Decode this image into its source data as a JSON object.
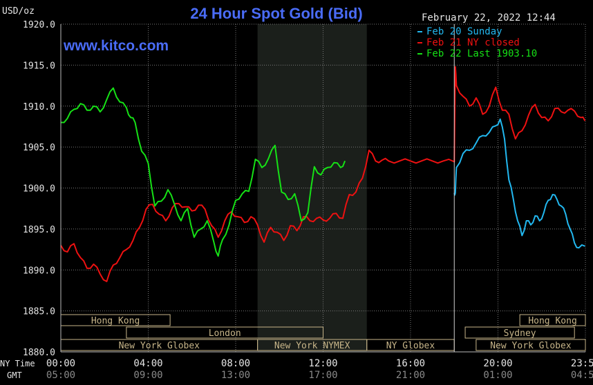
{
  "chart_data": {
    "type": "line",
    "title": "24 Hour Spot Gold (Bid)",
    "watermark": "www.kitco.com",
    "date_time": "February 22, 2022 12:44",
    "y_unit": "USD/oz",
    "ylim": [
      1880,
      1920
    ],
    "y_ticks": [
      "1920.0",
      "1915.0",
      "1910.0",
      "1905.0",
      "1900.0",
      "1895.0",
      "1890.0",
      "1885.0",
      "1880.0"
    ],
    "x_row_labels": {
      "ny": "NY Time",
      "gmt": "GMT"
    },
    "x_ticks_ny": [
      "00:00",
      "04:00",
      "08:00",
      "12:00",
      "16:00",
      "20:00",
      "23:59"
    ],
    "x_ticks_gmt": [
      "05:00",
      "09:00",
      "13:00",
      "17:00",
      "21:00",
      "01:00",
      "04:59"
    ],
    "grid": true,
    "legend_position": "top-right",
    "colors": {
      "background": "#000000",
      "grid": "#7a7a7a",
      "title": "#4a6cf7",
      "watermark": "#4a6cf7",
      "shade": "#1b1f1b",
      "session_box": "#c8b68a"
    },
    "series": [
      {
        "name": "Feb 20 Sunday",
        "color": "#22b8f0",
        "x": [
          18.0,
          18.05,
          18.1,
          18.4,
          18.7,
          19.0,
          19.3,
          19.6,
          19.9,
          20.1,
          20.3,
          20.5,
          20.7,
          20.9,
          21.1,
          21.3,
          21.5,
          21.7,
          21.9,
          22.1,
          22.3,
          22.5,
          22.7,
          22.9,
          23.1,
          23.3,
          23.5,
          23.7,
          23.98
        ],
        "y": [
          1899.4,
          1899.4,
          1902.5,
          1904.2,
          1904.6,
          1905.5,
          1906.4,
          1906.8,
          1907.6,
          1908.4,
          1906.0,
          1901.0,
          1898.7,
          1896.0,
          1894.2,
          1896.0,
          1895.5,
          1896.6,
          1896.0,
          1897.0,
          1898.5,
          1899.2,
          1898.6,
          1897.8,
          1896.8,
          1895.0,
          1893.3,
          1892.7,
          1892.9
        ]
      },
      {
        "name": "Feb 21 NY closed",
        "color": "#ee1111",
        "x": [
          0.0,
          0.3,
          0.6,
          0.9,
          1.2,
          1.5,
          1.8,
          2.1,
          2.4,
          2.7,
          3.0,
          3.3,
          3.6,
          3.9,
          4.2,
          4.5,
          4.8,
          5.1,
          5.4,
          5.7,
          6.0,
          6.3,
          6.6,
          6.9,
          7.2,
          7.5,
          7.8,
          8.1,
          8.4,
          8.7,
          9.0,
          9.3,
          9.6,
          9.9,
          10.2,
          10.5,
          10.8,
          11.1,
          11.4,
          11.7,
          12.0,
          12.3,
          12.6,
          12.9,
          13.2,
          13.5,
          13.8,
          14.1,
          14.4,
          14.7,
          15.0,
          15.5,
          16.0,
          16.5,
          17.0,
          17.5,
          18.0,
          18.05,
          18.1,
          18.4,
          18.7,
          19.0,
          19.3,
          19.6,
          19.9,
          20.2,
          20.5,
          20.8,
          21.1,
          21.4,
          21.7,
          22.0,
          22.3,
          22.6,
          22.9,
          23.2,
          23.5,
          23.8,
          23.98
        ],
        "y": [
          1893.0,
          1892.2,
          1893.2,
          1891.5,
          1890.2,
          1890.7,
          1889.5,
          1888.6,
          1890.6,
          1891.5,
          1892.5,
          1893.6,
          1895.2,
          1897.4,
          1898.0,
          1896.8,
          1896.0,
          1897.6,
          1898.1,
          1897.7,
          1897.2,
          1897.9,
          1897.4,
          1895.4,
          1894.0,
          1896.0,
          1897.1,
          1896.5,
          1895.8,
          1896.5,
          1895.5,
          1893.4,
          1895.2,
          1894.6,
          1893.6,
          1895.4,
          1894.8,
          1896.5,
          1896.0,
          1896.3,
          1896.1,
          1896.3,
          1896.9,
          1896.3,
          1899.2,
          1899.5,
          1901.2,
          1904.6,
          1903.3,
          1903.4,
          1903.3,
          1903.3,
          1903.3,
          1903.3,
          1903.3,
          1903.3,
          1903.2,
          1914.8,
          1912.5,
          1911.2,
          1910.0,
          1911.0,
          1909.0,
          1910.0,
          1912.3,
          1909.5,
          1909.0,
          1906.0,
          1907.0,
          1908.9,
          1910.2,
          1908.6,
          1908.2,
          1909.7,
          1909.3,
          1909.5,
          1909.4,
          1908.6,
          1908.2
        ]
      },
      {
        "name": "Feb 22 Last 1903.10",
        "color": "#16e116",
        "x": [
          0.0,
          0.3,
          0.6,
          0.9,
          1.2,
          1.5,
          1.8,
          2.1,
          2.4,
          2.7,
          3.0,
          3.2,
          3.4,
          3.7,
          4.0,
          4.3,
          4.6,
          4.9,
          5.2,
          5.5,
          5.8,
          6.1,
          6.4,
          6.7,
          7.0,
          7.2,
          7.4,
          7.7,
          8.0,
          8.3,
          8.6,
          8.9,
          9.2,
          9.5,
          9.8,
          10.1,
          10.4,
          10.7,
          11.0,
          11.3,
          11.6,
          11.9,
          12.2,
          12.5,
          12.8,
          13.0
        ],
        "y": [
          1908.0,
          1908.5,
          1909.6,
          1910.3,
          1909.5,
          1910.0,
          1909.3,
          1910.8,
          1912.2,
          1910.5,
          1909.8,
          1908.6,
          1908.0,
          1904.5,
          1903.0,
          1897.8,
          1898.4,
          1899.8,
          1898.0,
          1896.0,
          1897.5,
          1894.0,
          1895.0,
          1896.0,
          1893.4,
          1891.7,
          1893.7,
          1895.5,
          1898.5,
          1899.3,
          1899.6,
          1903.5,
          1902.5,
          1903.6,
          1905.2,
          1899.5,
          1898.6,
          1899.3,
          1896.0,
          1897.0,
          1902.6,
          1901.6,
          1902.5,
          1903.1,
          1902.5,
          1903.3
        ]
      }
    ],
    "sessions": [
      {
        "label": "Hong Kong",
        "row": 0,
        "start": 0.0,
        "end": 5.0
      },
      {
        "label": "London",
        "row": 1,
        "start": 3.0,
        "end": 12.0
      },
      {
        "label": "New York Globex",
        "row": 2,
        "start": 0.0,
        "end": 9.0
      },
      {
        "label": "New York NYMEX",
        "row": 2,
        "start": 9.0,
        "end": 14.0
      },
      {
        "label": "NY Globex",
        "row": 2,
        "start": 14.0,
        "end": 18.0
      },
      {
        "label": "Sydney",
        "row": 1,
        "start": 18.5,
        "end": 23.5
      },
      {
        "label": "Hong Kong",
        "row": 0,
        "start": 21.0,
        "end": 24.0
      },
      {
        "label": "New York Globex",
        "row": 2,
        "start": 19.0,
        "end": 24.0
      }
    ],
    "shaded_region": [
      9.0,
      14.0
    ],
    "divider_x": 18.0
  }
}
